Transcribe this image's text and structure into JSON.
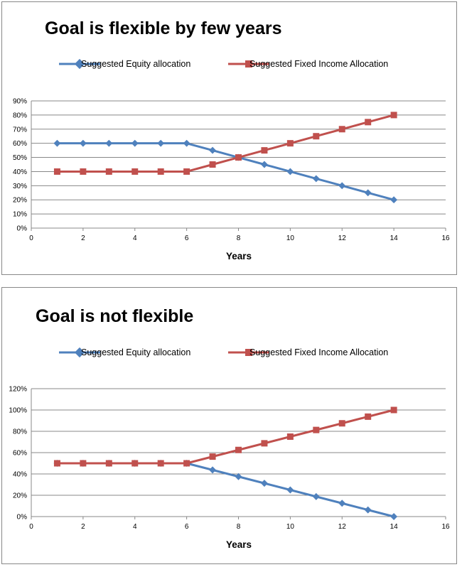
{
  "colors": {
    "equity": "#4F81BD",
    "fixed_income": "#C0504D",
    "grid": "#888888"
  },
  "chart_data": [
    {
      "type": "line",
      "title": "Goal is flexible by few years",
      "xlabel": "Years",
      "ylabel": "",
      "xlim": [
        0,
        16
      ],
      "xticks": [
        "0",
        "2",
        "4",
        "6",
        "8",
        "10",
        "12",
        "14",
        "16"
      ],
      "ylim": [
        0,
        90
      ],
      "yticks": [
        "0%",
        "10%",
        "20%",
        "30%",
        "40%",
        "50%",
        "60%",
        "70%",
        "80%",
        "90%"
      ],
      "grid": true,
      "legend_position": "top",
      "x": [
        1,
        2,
        3,
        4,
        5,
        6,
        7,
        8,
        9,
        10,
        11,
        12,
        13,
        14
      ],
      "series": [
        {
          "name": "Suggested Equity allocation",
          "marker": "diamond",
          "values": [
            60,
            60,
            60,
            60,
            60,
            60,
            55,
            50,
            45,
            40,
            35,
            30,
            25,
            20
          ]
        },
        {
          "name": "Suggested Fixed Income Allocation",
          "marker": "square",
          "values": [
            40,
            40,
            40,
            40,
            40,
            40,
            45,
            50,
            55,
            60,
            65,
            70,
            75,
            80
          ]
        }
      ]
    },
    {
      "type": "line",
      "title": "Goal is not flexible",
      "xlabel": "Years",
      "ylabel": "",
      "xlim": [
        0,
        16
      ],
      "xticks": [
        "0",
        "2",
        "4",
        "6",
        "8",
        "10",
        "12",
        "14",
        "16"
      ],
      "ylim": [
        0,
        120
      ],
      "yticks": [
        "0%",
        "20%",
        "40%",
        "60%",
        "80%",
        "100%",
        "120%"
      ],
      "grid": true,
      "legend_position": "top",
      "x": [
        1,
        2,
        3,
        4,
        5,
        6,
        7,
        8,
        9,
        10,
        11,
        12,
        13,
        14
      ],
      "series": [
        {
          "name": "Suggested Equity allocation",
          "marker": "diamond",
          "values": [
            50,
            50,
            50,
            50,
            50,
            50,
            43.75,
            37.5,
            31.25,
            25,
            18.75,
            12.5,
            6.25,
            0
          ]
        },
        {
          "name": "Suggested Fixed Income Allocation",
          "marker": "square",
          "values": [
            50,
            50,
            50,
            50,
            50,
            50,
            56.25,
            62.5,
            68.75,
            75,
            81.25,
            87.5,
            93.75,
            100
          ]
        }
      ]
    }
  ]
}
